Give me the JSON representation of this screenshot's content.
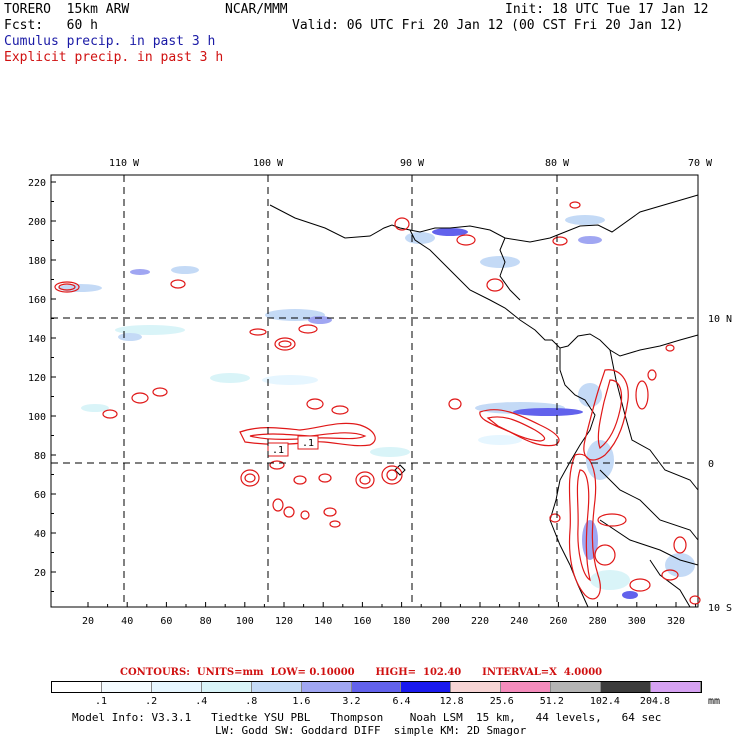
{
  "header": {
    "model": "TORERO  15km ARW",
    "center": "NCAR/MMM",
    "init": "Init: 18 UTC Tue 17 Jan 12",
    "fcst": "Fcst:   60 h",
    "valid": "Valid: 06 UTC Fri 20 Jan 12 (00 CST Fri 20 Jan 12)",
    "field1": "Cumulus precip. in past 3 h",
    "field2": "Explicit precip. in past 3 h"
  },
  "colors": {
    "cumulus_text": "#1a1aa6",
    "explicit_text": "#d01010",
    "contour": "#e01818",
    "coast": "#000000"
  },
  "map": {
    "top_lon_labels": [
      "110 W",
      "100 W",
      "90 W",
      "80 W",
      "70 W"
    ],
    "right_lat_labels": [
      "10 N",
      "0",
      "10 S"
    ],
    "left_y_ticks": [
      "220",
      "200",
      "180",
      "160",
      "140",
      "120",
      "100",
      "80",
      "60",
      "40",
      "20"
    ],
    "bottom_x_ticks": [
      "20",
      "40",
      "60",
      "80",
      "100",
      "120",
      "140",
      "160",
      "180",
      "200",
      "220",
      "240",
      "260",
      "280",
      "300",
      "320"
    ],
    "box_labels": [
      ".1",
      ".1"
    ]
  },
  "contours_line": "CONTOURS:  UNITS=mm  LOW= 0.10000      HIGH=  102.40      INTERVAL=X  4.0000",
  "legend": {
    "unit": "mm",
    "values": [
      ".1",
      ".2",
      ".4",
      ".8",
      "1.6",
      "3.2",
      "6.4",
      "12.8",
      "25.6",
      "51.2",
      "102.4",
      "204.8"
    ],
    "swatches": [
      "#ffffff",
      "#f4fbff",
      "#e6f6ff",
      "#d9f4f8",
      "#c4daf6",
      "#a0a6f2",
      "#6262ec",
      "#1a1aee",
      "#f6d4d4",
      "#f48cbc",
      "#b4b4b4",
      "#3c3c3c",
      "#d6a2f2"
    ]
  },
  "footer": {
    "line1": "Model Info: V3.3.1   Tiedtke YSU PBL   Thompson    Noah LSM  15 km,   44 levels,   64 sec",
    "line2": "LW: Godd SW: Goddard DIFF  simple KM: 2D Smagor"
  }
}
